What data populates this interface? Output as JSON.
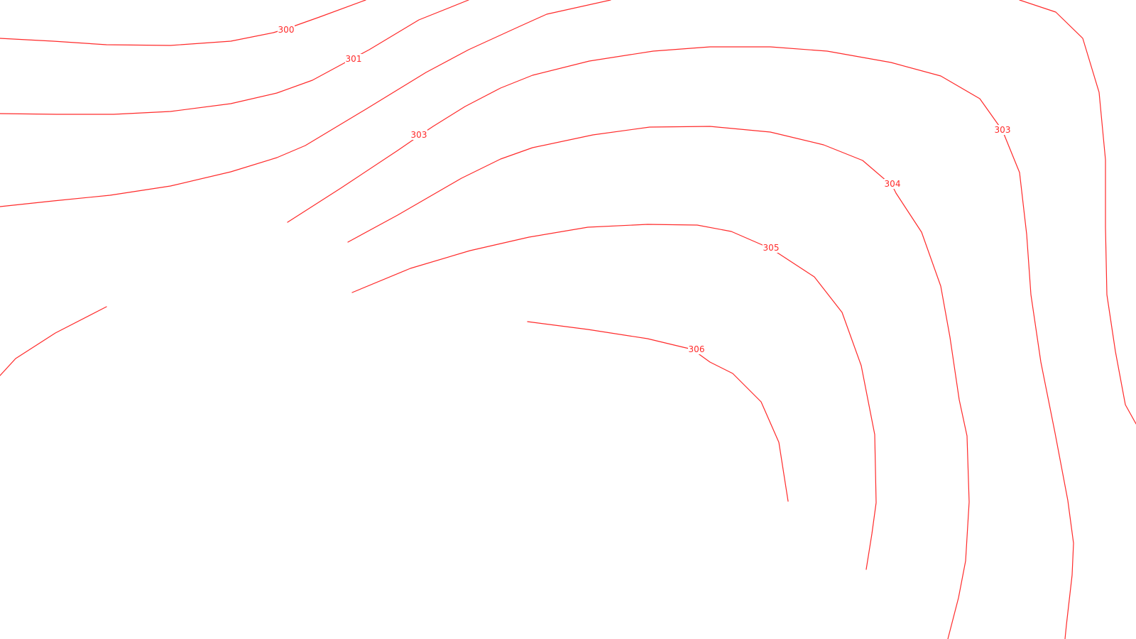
{
  "map": {
    "line_color": "#ff2a2a",
    "background": "#ffffff",
    "contour_labels": [
      {
        "id": "label-300",
        "text": "300"
      },
      {
        "id": "label-301",
        "text": "301"
      },
      {
        "id": "label-303a",
        "text": "303"
      },
      {
        "id": "label-303b",
        "text": "303"
      },
      {
        "id": "label-304",
        "text": "304"
      },
      {
        "id": "label-305",
        "text": "305"
      },
      {
        "id": "label-306",
        "text": "306"
      }
    ]
  }
}
